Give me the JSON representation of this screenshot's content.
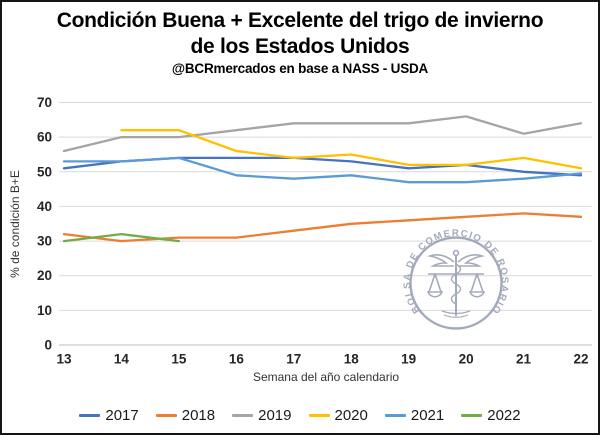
{
  "title": {
    "line1": "Condición Buena + Excelente del trigo de invierno",
    "line2": "de los Estados Unidos",
    "subtitle": "@BCRmercados en base a NASS - USDA"
  },
  "chart_data": {
    "type": "line",
    "x": [
      13,
      14,
      15,
      16,
      17,
      18,
      19,
      20,
      21,
      22
    ],
    "xlabel": "Semana del año calendario",
    "ylabel": "% de condición B+E",
    "ylim": [
      0,
      70
    ],
    "yticks": [
      0,
      10,
      20,
      30,
      40,
      50,
      60,
      70
    ],
    "grid": true,
    "legend_position": "bottom",
    "series": [
      {
        "name": "2017",
        "color": "#4472C4",
        "values": [
          51,
          53,
          54,
          54,
          54,
          53,
          51,
          52,
          50,
          49
        ]
      },
      {
        "name": "2018",
        "color": "#ED7D31",
        "values": [
          32,
          30,
          31,
          31,
          33,
          35,
          36,
          37,
          38,
          37
        ]
      },
      {
        "name": "2019",
        "color": "#A5A5A5",
        "values": [
          56,
          60,
          60,
          62,
          64,
          64,
          64,
          66,
          61,
          64
        ]
      },
      {
        "name": "2020",
        "color": "#FFC000",
        "values": [
          null,
          62,
          62,
          56,
          54,
          55,
          52,
          52,
          54,
          51
        ]
      },
      {
        "name": "2021",
        "color": "#5B9BD5",
        "values": [
          53,
          53,
          54,
          49,
          48,
          49,
          47,
          47,
          48,
          49.5
        ]
      },
      {
        "name": "2022",
        "color": "#70AD47",
        "values": [
          30,
          32,
          30,
          null,
          null,
          null,
          null,
          null,
          null,
          null
        ]
      }
    ]
  },
  "watermark": {
    "ring_text": "BOLSA DE COMERCIO DE ROSARIO",
    "color": "#8a93a8"
  },
  "colors": {
    "gridline": "#D9D9D9",
    "axis_line": "#BFBFBF",
    "tick_text": "#262626"
  }
}
